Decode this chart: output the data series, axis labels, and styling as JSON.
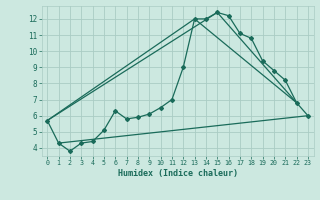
{
  "title": "",
  "xlabel": "Humidex (Indice chaleur)",
  "background_color": "#cce8e0",
  "grid_color": "#aaccC4",
  "line_color": "#1a6b5a",
  "xlim": [
    -0.5,
    23.5
  ],
  "ylim": [
    3.5,
    12.8
  ],
  "yticks": [
    4,
    5,
    6,
    7,
    8,
    9,
    10,
    11,
    12
  ],
  "xticks": [
    0,
    1,
    2,
    3,
    4,
    5,
    6,
    7,
    8,
    9,
    10,
    11,
    12,
    13,
    14,
    15,
    16,
    17,
    18,
    19,
    20,
    21,
    22,
    23
  ],
  "series1_x": [
    0,
    1,
    2,
    3,
    4,
    5,
    6,
    7,
    8,
    9,
    10,
    11,
    12,
    13,
    14,
    15,
    16,
    17,
    18,
    19,
    20,
    21,
    22,
    23
  ],
  "series1_y": [
    5.7,
    4.3,
    3.8,
    4.3,
    4.4,
    5.1,
    6.3,
    5.8,
    5.9,
    6.1,
    6.5,
    7.0,
    9.0,
    12.0,
    12.0,
    12.4,
    12.2,
    11.1,
    10.8,
    9.4,
    8.8,
    8.2,
    6.8,
    6.0
  ],
  "series2_x": [
    0,
    15,
    22
  ],
  "series2_y": [
    5.7,
    12.4,
    6.8
  ],
  "series3_x": [
    0,
    13,
    22
  ],
  "series3_y": [
    5.7,
    12.0,
    6.8
  ],
  "series4_x": [
    1,
    23
  ],
  "series4_y": [
    4.3,
    6.0
  ]
}
